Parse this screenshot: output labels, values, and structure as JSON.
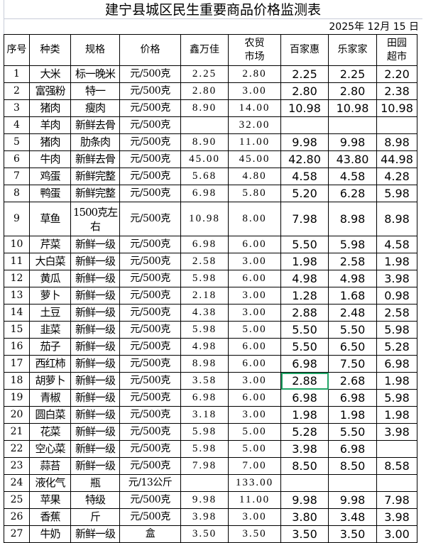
{
  "title": "建宁县城区民生重要商品价格监测表",
  "date": "2025年  12月  15  日",
  "headers": [
    "序号",
    "种类",
    "规格",
    "价格",
    "鑫万佳",
    "农贸市场",
    "百家惠",
    "乐家家",
    "田园超市"
  ],
  "selected_cell": {
    "row": "18",
    "column": "百家惠"
  },
  "rows": [
    {
      "no": "1",
      "item": "大米",
      "spec": "标一晚米",
      "unit": "元/500克",
      "xwj": "2.25",
      "market": "2.80",
      "bjh": "2.25",
      "ljj": "2.25",
      "ty": "2.20"
    },
    {
      "no": "2",
      "item": "富强粉",
      "spec": "特一",
      "unit": "元/500克",
      "xwj": "2.80",
      "market": "3.00",
      "bjh": "2.80",
      "ljj": "2.80",
      "ty": "2.38"
    },
    {
      "no": "3",
      "item": "猪肉",
      "spec": "瘦肉",
      "unit": "元/500克",
      "xwj": "8.90",
      "market": "14.00",
      "bjh": "10.98",
      "ljj": "10.98",
      "ty": "10.98"
    },
    {
      "no": "4",
      "item": "羊肉",
      "spec": "新鲜去骨",
      "unit": "元/500克",
      "xwj": "",
      "market": "32.00",
      "bjh": "",
      "ljj": "",
      "ty": ""
    },
    {
      "no": "5",
      "item": "猪肉",
      "spec": "肋条肉",
      "unit": "元/500克",
      "xwj": "8.90",
      "market": "11.00",
      "bjh": "9.98",
      "ljj": "9.98",
      "ty": "8.98"
    },
    {
      "no": "6",
      "item": "牛肉",
      "spec": "新鲜去骨",
      "unit": "元/500克",
      "xwj": "45.00",
      "market": "45.00",
      "bjh": "42.80",
      "ljj": "43.80",
      "ty": "44.98"
    },
    {
      "no": "7",
      "item": "鸡蛋",
      "spec": "新鲜完整",
      "unit": "元/500克",
      "xwj": "5.68",
      "market": "4.80",
      "bjh": "4.58",
      "ljj": "4.58",
      "ty": "4.28"
    },
    {
      "no": "8",
      "item": "鸭蛋",
      "spec": "新鲜完整",
      "unit": "元/500克",
      "xwj": "6.98",
      "market": "5.80",
      "bjh": "5.20",
      "ljj": "6.28",
      "ty": "5.98"
    },
    {
      "no": "9",
      "item": "草鱼",
      "spec": "1500克左右",
      "unit": "元/500克",
      "xwj": "10.98",
      "market": "8.00",
      "bjh": "7.98",
      "ljj": "8.98",
      "ty": "8.98"
    },
    {
      "no": "10",
      "item": "芹菜",
      "spec": "新鲜一级",
      "unit": "元/500克",
      "xwj": "6.98",
      "market": "6.00",
      "bjh": "5.50",
      "ljj": "5.98",
      "ty": "4.58"
    },
    {
      "no": "11",
      "item": "大白菜",
      "spec": "新鲜一级",
      "unit": "元/500克",
      "xwj": "2.58",
      "market": "3.00",
      "bjh": "1.98",
      "ljj": "2.58",
      "ty": "1.98"
    },
    {
      "no": "12",
      "item": "黄瓜",
      "spec": "新鲜一级",
      "unit": "元/500克",
      "xwj": "5.98",
      "market": "6.00",
      "bjh": "4.98",
      "ljj": "4.98",
      "ty": "3.98"
    },
    {
      "no": "13",
      "item": "萝卜",
      "spec": "新鲜一级",
      "unit": "元/500克",
      "xwj": "2.18",
      "market": "3.00",
      "bjh": "1.28",
      "ljj": "1.68",
      "ty": "0.98"
    },
    {
      "no": "14",
      "item": "土豆",
      "spec": "新鲜一级",
      "unit": "元/500克",
      "xwj": "4.38",
      "market": "3.00",
      "bjh": "2.88",
      "ljj": "2.48",
      "ty": "2.58"
    },
    {
      "no": "15",
      "item": "韭菜",
      "spec": "新鲜一级",
      "unit": "元/500克",
      "xwj": "5.98",
      "market": "5.00",
      "bjh": "5.50",
      "ljj": "5.50",
      "ty": "5.98"
    },
    {
      "no": "16",
      "item": "茄子",
      "spec": "新鲜一级",
      "unit": "元/500克",
      "xwj": "4.98",
      "market": "6.00",
      "bjh": "5.50",
      "ljj": "6.50",
      "ty": "5.28"
    },
    {
      "no": "17",
      "item": "西红柿",
      "spec": "新鲜一级",
      "unit": "元/500克",
      "xwj": "8.98",
      "market": "6.00",
      "bjh": "6.98",
      "ljj": "7.50",
      "ty": "6.98"
    },
    {
      "no": "18",
      "item": "胡萝卜",
      "spec": "新鲜一级",
      "unit": "元/500克",
      "xwj": "3.58",
      "market": "3.00",
      "bjh": "2.88",
      "ljj": "2.68",
      "ty": "1.98"
    },
    {
      "no": "19",
      "item": "青椒",
      "spec": "新鲜一级",
      "unit": "元/500克",
      "xwj": "6.98",
      "market": "6.00",
      "bjh": "6.98",
      "ljj": "6.98",
      "ty": "5.98"
    },
    {
      "no": "20",
      "item": "圆白菜",
      "spec": "新鲜一级",
      "unit": "元/500克",
      "xwj": "3.18",
      "market": "3.00",
      "bjh": "1.98",
      "ljj": "1.98",
      "ty": "1.98"
    },
    {
      "no": "21",
      "item": "花菜",
      "spec": "新鲜一级",
      "unit": "元/500克",
      "xwj": "5.98",
      "market": "5.00",
      "bjh": "5.28",
      "ljj": "5.50",
      "ty": "3.98"
    },
    {
      "no": "22",
      "item": "空心菜",
      "spec": "新鲜一级",
      "unit": "元/500克",
      "xwj": "5.98",
      "market": "5.00",
      "bjh": "3.98",
      "ljj": "6.98",
      "ty": ""
    },
    {
      "no": "23",
      "item": "蒜苔",
      "spec": "新鲜一级",
      "unit": "元/500克",
      "xwj": "7.98",
      "market": "7.00",
      "bjh": "8.50",
      "ljj": "8.50",
      "ty": "8.58"
    },
    {
      "no": "24",
      "item": "液化气",
      "spec": "瓶",
      "unit": "元/13公斤",
      "xwj": "",
      "market": "133.00",
      "bjh": "",
      "ljj": "",
      "ty": ""
    },
    {
      "no": "25",
      "item": "苹果",
      "spec": "特级",
      "unit": "元/500克",
      "xwj": "9.98",
      "market": "11.00",
      "bjh": "9.98",
      "ljj": "9.98",
      "ty": "7.98"
    },
    {
      "no": "26",
      "item": "香蕉",
      "spec": "斤",
      "unit": "元/500克",
      "xwj": "3.98",
      "market": "3.00",
      "bjh": "3.80",
      "ljj": "3.48",
      "ty": "3.98"
    },
    {
      "no": "27",
      "item": "牛奶",
      "spec": "新鲜一级",
      "unit": "盒",
      "xwj": "3.50",
      "market": "3.50",
      "bjh": "3.50",
      "ljj": "3.50",
      "ty": "3.00"
    }
  ]
}
